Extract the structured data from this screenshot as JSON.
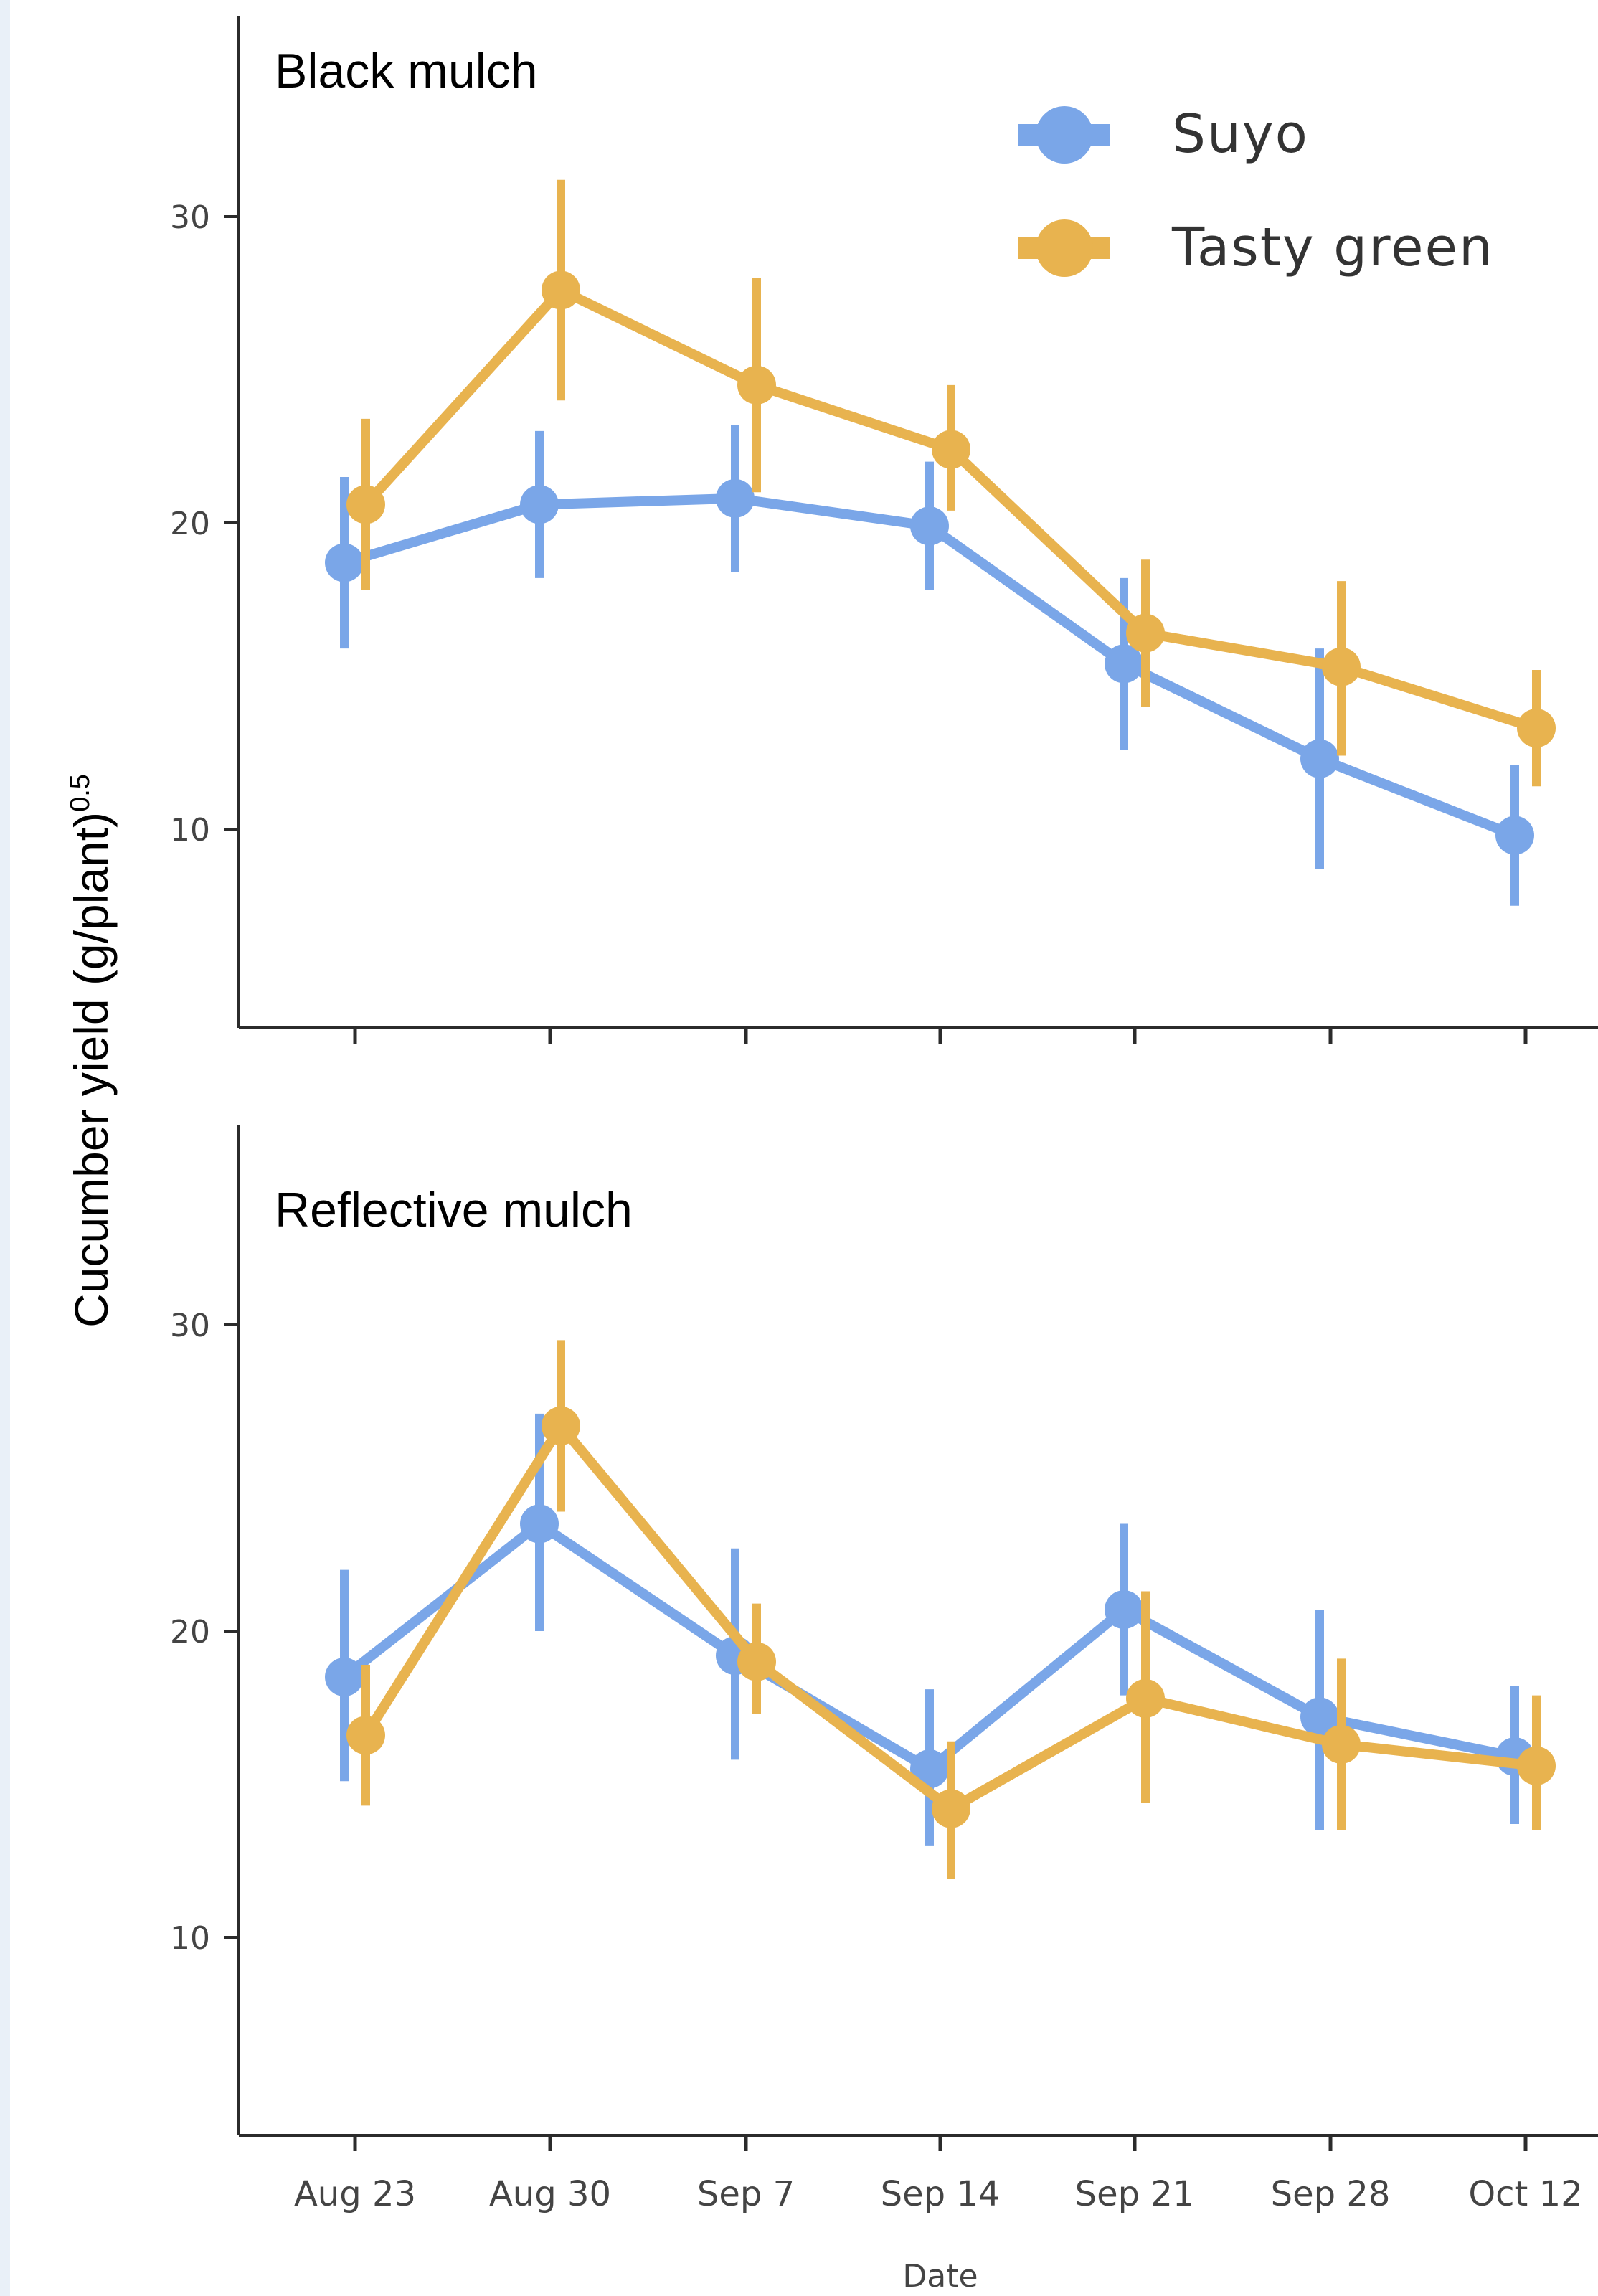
{
  "chart_data": {
    "type": "line",
    "ylabel": "Cucumber yield (g/plant)",
    "ylabel_superscript": "0.5",
    "xlabel": "Date",
    "categories": [
      "Aug 23",
      "Aug 30",
      "Sep 7",
      "Sep 14",
      "Sep 21",
      "Sep 28",
      "Oct 12"
    ],
    "y_ticks": [
      10,
      20,
      30
    ],
    "ylim": [
      3.5,
      36.5
    ],
    "legend": {
      "placement": "top-right",
      "entries": [
        {
          "name": "Suyo",
          "color": "#7aa6e8"
        },
        {
          "name": "Tasty green",
          "color": "#e8b34f"
        }
      ]
    },
    "panels": [
      {
        "title": "Black mulch",
        "series": [
          {
            "name": "Suyo",
            "color": "#7aa6e8",
            "values": [
              18.7,
              20.6,
              20.8,
              19.9,
              15.4,
              12.3,
              9.8
            ],
            "lower": [
              15.9,
              18.2,
              18.4,
              17.8,
              12.6,
              8.7,
              7.5
            ],
            "upper": [
              21.5,
              23.0,
              23.2,
              22.0,
              18.2,
              15.9,
              12.1
            ]
          },
          {
            "name": "Tasty green",
            "color": "#e8b34f",
            "values": [
              20.6,
              27.6,
              24.5,
              22.4,
              16.4,
              15.3,
              13.3
            ],
            "lower": [
              17.8,
              24.0,
              21.0,
              20.4,
              14.0,
              12.4,
              11.4
            ],
            "upper": [
              23.4,
              31.2,
              28.0,
              24.5,
              18.8,
              18.1,
              15.2
            ]
          }
        ]
      },
      {
        "title": "Reflective mulch",
        "series": [
          {
            "name": "Suyo",
            "color": "#7aa6e8",
            "values": [
              18.5,
              23.5,
              19.2,
              15.5,
              20.7,
              17.2,
              15.9
            ],
            "lower": [
              15.1,
              20.0,
              15.8,
              13.0,
              17.9,
              13.5,
              13.7
            ],
            "upper": [
              22.0,
              27.1,
              22.7,
              18.1,
              23.5,
              20.7,
              18.2
            ]
          },
          {
            "name": "Tasty green",
            "color": "#e8b34f",
            "values": [
              16.6,
              26.7,
              19.0,
              14.2,
              17.8,
              16.3,
              15.6
            ],
            "lower": [
              14.3,
              23.9,
              17.3,
              11.9,
              14.4,
              13.5,
              13.5
            ],
            "upper": [
              18.9,
              29.5,
              20.9,
              16.4,
              21.3,
              19.1,
              17.9
            ]
          }
        ]
      }
    ]
  }
}
